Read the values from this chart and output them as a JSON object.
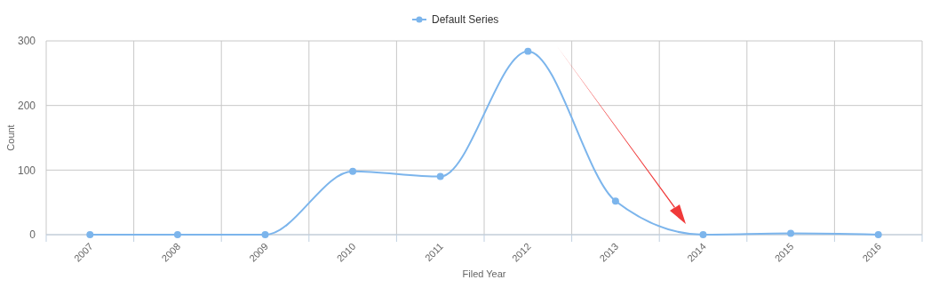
{
  "chart_data": {
    "type": "line",
    "xlabel": "Filed Year",
    "ylabel": "Count",
    "categories": [
      "2007",
      "2008",
      "2009",
      "2010",
      "2011",
      "2012",
      "2013",
      "2014",
      "2015",
      "2016"
    ],
    "series": [
      {
        "name": "Default Series",
        "color": "#7cb5ec",
        "values": [
          0,
          0,
          0,
          98,
          90,
          284,
          52,
          0,
          2,
          0
        ]
      }
    ],
    "ylim": [
      0,
      300
    ],
    "yticks": [
      0,
      100,
      200,
      300
    ],
    "grid": true,
    "legend": "top",
    "marker": "circle"
  }
}
